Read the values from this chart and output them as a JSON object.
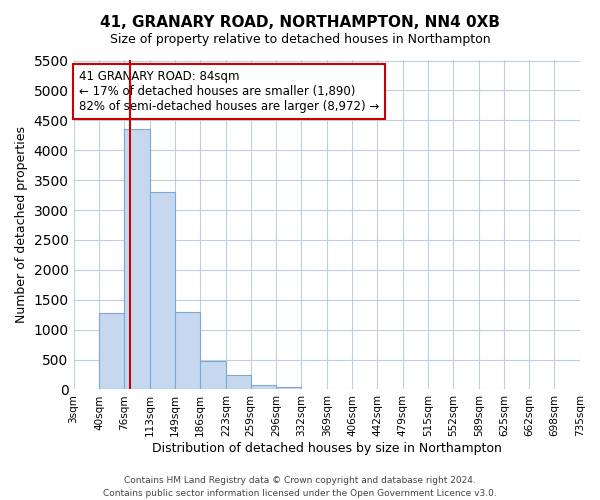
{
  "title": "41, GRANARY ROAD, NORTHAMPTON, NN4 0XB",
  "subtitle": "Size of property relative to detached houses in Northampton",
  "xlabel": "Distribution of detached houses by size in Northampton",
  "ylabel": "Number of detached properties",
  "footer_line1": "Contains HM Land Registry data © Crown copyright and database right 2024.",
  "footer_line2": "Contains public sector information licensed under the Open Government Licence v3.0.",
  "bin_edges": [
    3,
    40,
    76,
    113,
    149,
    186,
    223,
    259,
    296,
    332,
    369,
    406,
    442,
    479,
    515,
    552,
    589,
    625,
    662,
    698,
    735
  ],
  "bar_heights": [
    0,
    1280,
    4350,
    3300,
    1300,
    480,
    240,
    80,
    40,
    0,
    0,
    0,
    0,
    0,
    0,
    0,
    0,
    0,
    0,
    0
  ],
  "bar_color": "#c5d8f0",
  "bar_edge_color": "#7fa8d0",
  "property_line_x": 84,
  "property_line_color": "#cc0000",
  "ylim": [
    0,
    5500
  ],
  "annotation_text": "41 GRANARY ROAD: 84sqm\n← 17% of detached houses are smaller (1,890)\n82% of semi-detached houses are larger (8,972) →",
  "annotation_box_color": "#cc0000",
  "background_color": "#ffffff",
  "grid_color": "#c0cfe0",
  "tick_labels": [
    "3sqm",
    "40sqm",
    "76sqm",
    "113sqm",
    "149sqm",
    "186sqm",
    "223sqm",
    "259sqm",
    "296sqm",
    "332sqm",
    "369sqm",
    "406sqm",
    "442sqm",
    "479sqm",
    "515sqm",
    "552sqm",
    "589sqm",
    "625sqm",
    "662sqm",
    "698sqm",
    "735sqm"
  ]
}
